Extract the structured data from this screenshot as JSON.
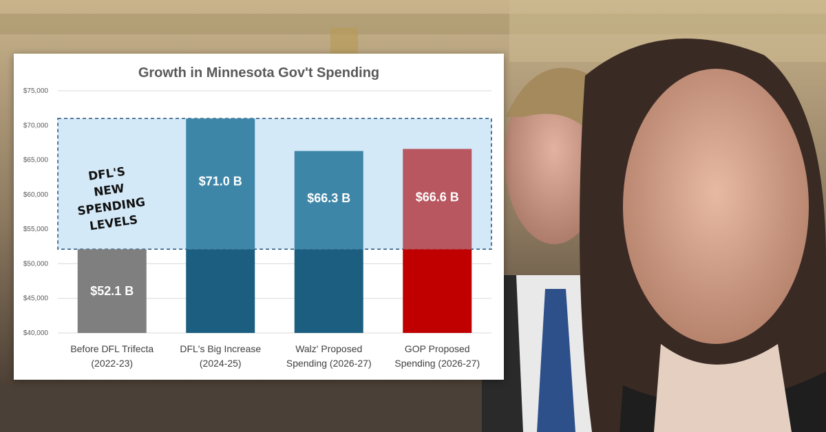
{
  "colors": {
    "highlight_fill": "#d4e9f7",
    "highlight_border": "#1f4e79",
    "before_bar": "#7f7f7f",
    "blue_base": "#1b5e80",
    "blue_top": "#3e86a8",
    "red_base": "#c00000",
    "red_top": "#b85760"
  },
  "chart_data": {
    "type": "bar",
    "title": "Growth in Minnesota Gov't Spending",
    "ylim": [
      40000,
      75000
    ],
    "yticks": [
      "$40,000",
      "$45,000",
      "$50,000",
      "$55,000",
      "$60,000",
      "$65,000",
      "$70,000",
      "$75,000"
    ],
    "grid": true,
    "categories": [
      [
        "Before DFL Trifecta",
        "(2022-23)"
      ],
      [
        "DFL's Big Increase",
        "(2024-25)"
      ],
      [
        "Walz' Proposed",
        "Spending (2026-27)"
      ],
      [
        "GOP Proposed",
        "Spending (2026-27)"
      ]
    ],
    "values": [
      52100,
      71000,
      66300,
      66600
    ],
    "baseline_value": 52100,
    "data_labels": [
      "$52.1 B",
      "$71.0 B",
      "$66.3 B",
      "$66.6 B"
    ],
    "annotation": {
      "lines": [
        "DFL'S",
        "NEW",
        "SPENDING",
        "LEVELS"
      ],
      "range": [
        52100,
        71000
      ]
    }
  }
}
